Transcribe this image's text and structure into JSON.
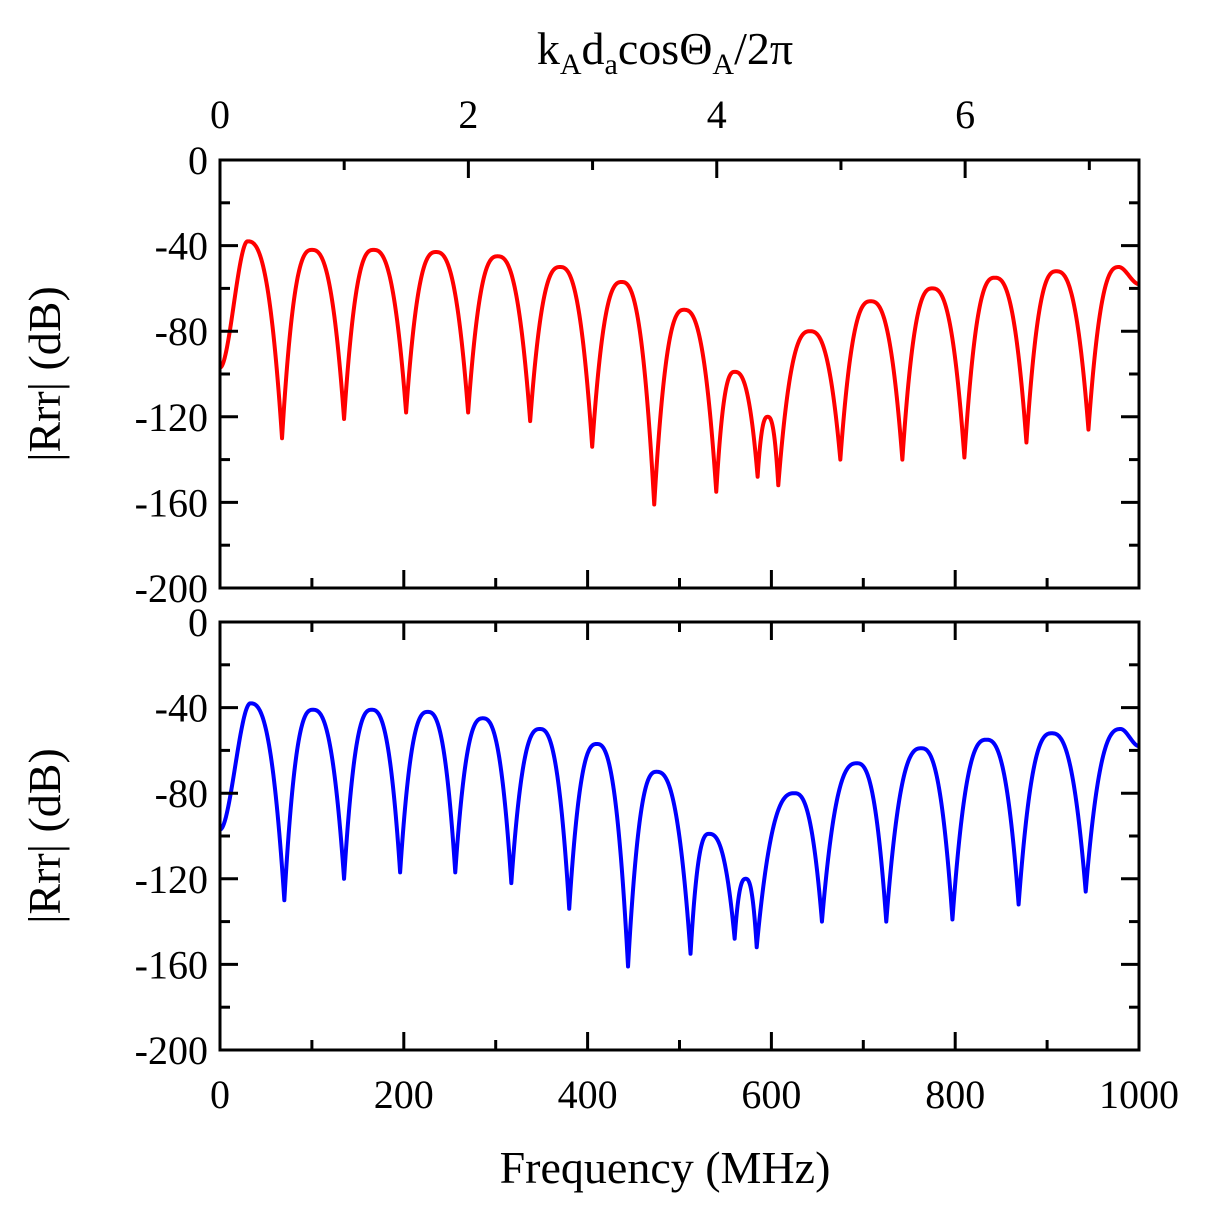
{
  "chart_data": [
    {
      "type": "line",
      "panel": "top",
      "title": "",
      "top_axis": {
        "label_parts": [
          {
            "text": "k",
            "sub": false
          },
          {
            "text": "A",
            "sub": true
          },
          {
            "text": "d",
            "sub": false
          },
          {
            "text": "a",
            "sub": true
          },
          {
            "text": "cosΘ",
            "sub": false
          },
          {
            "text": "A",
            "sub": true
          },
          {
            "text": "/2π",
            "sub": false
          }
        ],
        "range": [
          0,
          7.4
        ],
        "ticks": [
          "0",
          "2",
          "4",
          "6"
        ],
        "tick_values": [
          0,
          2,
          4,
          6
        ]
      },
      "xlabel": "",
      "ylabel": "|Rrr| (dB)",
      "xlim": [
        0,
        1000
      ],
      "ylim": [
        -200,
        0
      ],
      "yticks": [
        "0",
        "-40",
        "-80",
        "-120",
        "-160",
        "-200"
      ],
      "ytick_values": [
        0,
        -40,
        -80,
        -120,
        -160,
        -200
      ],
      "series": [
        {
          "name": "top",
          "color": "#ff0000",
          "start_db": -97,
          "end_db": -58,
          "nulls": [
            {
              "f": 67.5,
              "db": -130
            },
            {
              "f": 135,
              "db": -121
            },
            {
              "f": 202.5,
              "db": -118
            },
            {
              "f": 270,
              "db": -118
            },
            {
              "f": 337.5,
              "db": -122
            },
            {
              "f": 405,
              "db": -134
            },
            {
              "f": 472.5,
              "db": -161
            },
            {
              "f": 540,
              "db": -155
            },
            {
              "f": 585,
              "db": -148
            },
            {
              "f": 607.5,
              "db": -152
            },
            {
              "f": 675,
              "db": -140
            },
            {
              "f": 742.5,
              "db": -140
            },
            {
              "f": 810,
              "db": -139
            },
            {
              "f": 877.5,
              "db": -132
            },
            {
              "f": 945,
              "db": -126
            }
          ],
          "peaks": [
            {
              "f": 30,
              "db": -38
            },
            {
              "f": 100,
              "db": -42
            },
            {
              "f": 167,
              "db": -42
            },
            {
              "f": 235,
              "db": -43
            },
            {
              "f": 302,
              "db": -45
            },
            {
              "f": 370,
              "db": -50
            },
            {
              "f": 437,
              "db": -57
            },
            {
              "f": 505,
              "db": -70
            },
            {
              "f": 560,
              "db": -99
            },
            {
              "f": 596,
              "db": -120
            },
            {
              "f": 642,
              "db": -80
            },
            {
              "f": 708,
              "db": -66
            },
            {
              "f": 775,
              "db": -60
            },
            {
              "f": 843,
              "db": -55
            },
            {
              "f": 910,
              "db": -52
            },
            {
              "f": 978,
              "db": -50
            }
          ]
        }
      ]
    },
    {
      "type": "line",
      "panel": "bottom",
      "title": "",
      "xlabel": "Frequency (MHz)",
      "ylabel": "|Rrr| (dB)",
      "xlim": [
        0,
        1000
      ],
      "ylim": [
        -200,
        0
      ],
      "xticks": [
        "0",
        "200",
        "400",
        "600",
        "800",
        "1000"
      ],
      "xtick_values": [
        0,
        200,
        400,
        600,
        800,
        1000
      ],
      "yticks": [
        "0",
        "-40",
        "-80",
        "-120",
        "-160",
        "-200"
      ],
      "ytick_values": [
        0,
        -40,
        -80,
        -120,
        -160,
        -200
      ],
      "series": [
        {
          "name": "bottom",
          "color": "#0000ff",
          "start_db": -97,
          "end_db": -58,
          "nulls": [
            {
              "f": 70,
              "db": -130
            },
            {
              "f": 135,
              "db": -120
            },
            {
              "f": 196,
              "db": -117
            },
            {
              "f": 256,
              "db": -117
            },
            {
              "f": 317,
              "db": -122
            },
            {
              "f": 380,
              "db": -134
            },
            {
              "f": 444,
              "db": -161
            },
            {
              "f": 512,
              "db": -155
            },
            {
              "f": 560,
              "db": -148
            },
            {
              "f": 584,
              "db": -152
            },
            {
              "f": 655,
              "db": -140
            },
            {
              "f": 725,
              "db": -140
            },
            {
              "f": 797,
              "db": -139
            },
            {
              "f": 869,
              "db": -132
            },
            {
              "f": 942,
              "db": -126
            }
          ],
          "peaks": [
            {
              "f": 33,
              "db": -38
            },
            {
              "f": 101,
              "db": -41
            },
            {
              "f": 165,
              "db": -41
            },
            {
              "f": 226,
              "db": -42
            },
            {
              "f": 286,
              "db": -45
            },
            {
              "f": 348,
              "db": -50
            },
            {
              "f": 410,
              "db": -57
            },
            {
              "f": 475,
              "db": -70
            },
            {
              "f": 532,
              "db": -99
            },
            {
              "f": 572,
              "db": -120
            },
            {
              "f": 625,
              "db": -80
            },
            {
              "f": 693,
              "db": -66
            },
            {
              "f": 763,
              "db": -59
            },
            {
              "f": 834,
              "db": -55
            },
            {
              "f": 905,
              "db": -52
            },
            {
              "f": 980,
              "db": -50
            }
          ]
        }
      ]
    }
  ]
}
